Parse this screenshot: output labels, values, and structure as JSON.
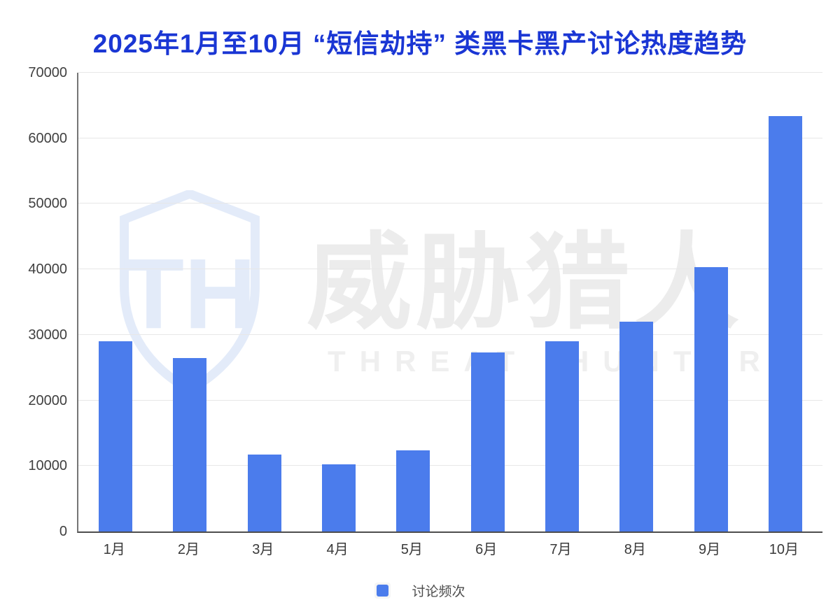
{
  "title": {
    "text": "2025年1月至10月 “短信劫持” 类黑卡黑产讨论热度趋势",
    "color": "#1a36d4"
  },
  "chart_data": {
    "type": "bar",
    "title": "2025年1月至10月 “短信劫持” 类黑卡黑产讨论热度趋势",
    "categories": [
      "1月",
      "2月",
      "3月",
      "4月",
      "5月",
      "6月",
      "7月",
      "8月",
      "9月",
      "10月"
    ],
    "series": [
      {
        "name": "讨论频次",
        "values": [
          29000,
          26500,
          11700,
          10200,
          12400,
          27300,
          29000,
          32000,
          40300,
          63400
        ]
      }
    ],
    "xlabel": "",
    "ylabel": "",
    "ylim": [
      0,
      70000
    ],
    "ytick_step": 10000,
    "ytick_labels": [
      "0",
      "10000",
      "20000",
      "30000",
      "40000",
      "50000",
      "60000",
      "70000"
    ],
    "grid": true,
    "legend_position": "bottom",
    "bar_color": "#4b7cec"
  },
  "legend": {
    "label": "讨论频次",
    "marker_color": "#4b7cec"
  },
  "watermark": {
    "logo_monogram": "TH",
    "cn_text": "威胁猎人",
    "en_text": "THREAT HUNTER",
    "logo_color": "#e3ebf9",
    "text_color": "#ececec"
  },
  "colors": {
    "background": "#ffffff",
    "gridline": "#e7e7e7",
    "axis_line": "#4d4d4d",
    "tick_label": "#404040"
  }
}
